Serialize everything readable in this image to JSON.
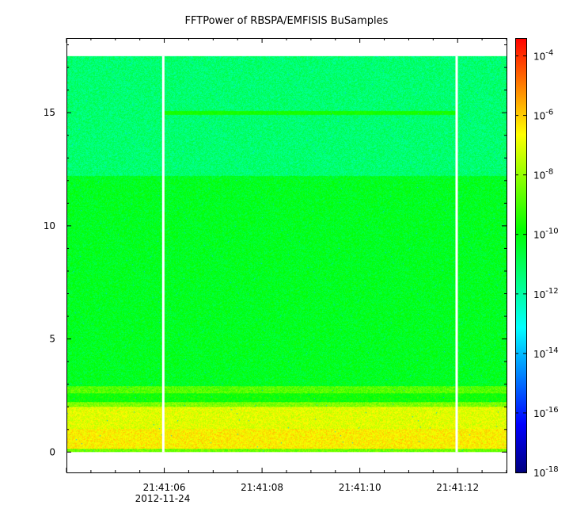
{
  "chart_data": {
    "type": "heatmap",
    "title": "FFTPower of RBSPA/EMFISIS  BuSamples",
    "xlabel": "",
    "ylabel": "",
    "x_ticks": [
      {
        "t": 6,
        "label": "21:41:06",
        "sublabel": "2012-11-24"
      },
      {
        "t": 8,
        "label": "21:41:08",
        "sublabel": ""
      },
      {
        "t": 10,
        "label": "21:41:10",
        "sublabel": ""
      },
      {
        "t": 12,
        "label": "21:41:12",
        "sublabel": ""
      }
    ],
    "xlim_seconds_after_21_41": [
      4.0,
      13.0
    ],
    "y_ticks": [
      0,
      5,
      10,
      15
    ],
    "ylim": [
      -0.9,
      18.3
    ],
    "data_y_range": [
      0,
      17.5
    ],
    "data_x_range_seconds_after_21_41": [
      4.0,
      13.0
    ],
    "gaps_seconds_after_21_41": [
      5.98,
      11.98
    ],
    "colorbar": {
      "scale": "log",
      "min_exponent": -18,
      "max_exponent": -3.4,
      "tick_exponents": [
        -18,
        -16,
        -14,
        -12,
        -10,
        -8,
        -6,
        -4
      ],
      "base": "10",
      "colors": [
        "#00007f",
        "#0000ff",
        "#007fff",
        "#00ffff",
        "#00ff80",
        "#00ff00",
        "#80ff00",
        "#ffff00",
        "#ff8000",
        "#ff0000"
      ]
    },
    "bands": [
      {
        "y_from": 0.0,
        "y_to": 0.15,
        "log_power": -8.5
      },
      {
        "y_from": 0.15,
        "y_to": 1.0,
        "log_power": -6.5
      },
      {
        "y_from": 1.0,
        "y_to": 2.0,
        "log_power": -7.0
      },
      {
        "y_from": 2.0,
        "y_to": 2.2,
        "log_power": -8.3
      },
      {
        "y_from": 2.2,
        "y_to": 2.6,
        "log_power": -9.8
      },
      {
        "y_from": 2.6,
        "y_to": 2.9,
        "log_power": -8.8
      },
      {
        "y_from": 2.9,
        "y_to": 12.2,
        "log_power": -10.3
      },
      {
        "y_from": 12.2,
        "y_to": 17.5,
        "log_power": -11.3
      }
    ],
    "line_feature": {
      "y": 15.0,
      "log_power": -9.6,
      "x_from_seconds_after_21_41": 6.0,
      "x_to_seconds_after_21_41": 12.0
    }
  }
}
